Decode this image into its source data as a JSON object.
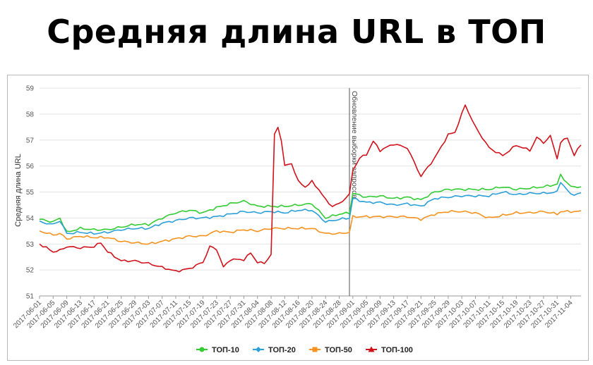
{
  "title": "Средняя длина URL в ТОП",
  "chart_data": {
    "type": "line",
    "title": "Средняя длина URL в ТОП",
    "ylabel": "Средняя длина URL",
    "xlabel": "",
    "ylim": [
      51,
      59
    ],
    "yticks": [
      51,
      52,
      53,
      54,
      55,
      56,
      57,
      58,
      59
    ],
    "x_start": "2017-06-01",
    "x_end": "2017-11-07",
    "x_tick_labels": [
      "2017-06-01",
      "2017-06-05",
      "2017-06-09",
      "2017-06-13",
      "2017-06-17",
      "2017-06-21",
      "2017-06-25",
      "2017-06-29",
      "2017-07-03",
      "2017-07-07",
      "2017-07-11",
      "2017-07-15",
      "2017-07-19",
      "2017-07-23",
      "2017-07-27",
      "2017-07-31",
      "2017-08-04",
      "2017-08-08",
      "2017-08-12",
      "2017-08-16",
      "2017-08-20",
      "2017-08-24",
      "2017-08-28",
      "2017-09-01",
      "2017-09-05",
      "2017-09-09",
      "2017-09-13",
      "2017-09-17",
      "2017-09-21",
      "2017-09-25",
      "2017-09-29",
      "2017-10-03",
      "2017-10-07",
      "2017-10-11",
      "2017-10-15",
      "2017-10-19",
      "2017-10-23",
      "2017-10-27",
      "2017-10-31",
      "2017-11-04"
    ],
    "grid": true,
    "legend_position": "bottom-center",
    "annotation": {
      "date": "2017-08-31",
      "text": "Обновление выборки запросов"
    },
    "series": [
      {
        "name": "ТОП-10",
        "color": "#33cc33",
        "marker": "circle",
        "anchors": [
          [
            "2017-06-01",
            53.95
          ],
          [
            "2017-06-05",
            53.85
          ],
          [
            "2017-06-07",
            54.0
          ],
          [
            "2017-06-09",
            53.45
          ],
          [
            "2017-06-13",
            53.6
          ],
          [
            "2017-06-17",
            53.55
          ],
          [
            "2017-06-21",
            53.55
          ],
          [
            "2017-06-25",
            53.65
          ],
          [
            "2017-06-29",
            53.75
          ],
          [
            "2017-07-03",
            53.75
          ],
          [
            "2017-07-07",
            54.0
          ],
          [
            "2017-07-11",
            54.2
          ],
          [
            "2017-07-15",
            54.3
          ],
          [
            "2017-07-19",
            54.2
          ],
          [
            "2017-07-23",
            54.4
          ],
          [
            "2017-07-27",
            54.55
          ],
          [
            "2017-07-31",
            54.65
          ],
          [
            "2017-08-04",
            54.45
          ],
          [
            "2017-08-08",
            54.45
          ],
          [
            "2017-08-12",
            54.45
          ],
          [
            "2017-08-16",
            54.5
          ],
          [
            "2017-08-20",
            54.55
          ],
          [
            "2017-08-24",
            54.0
          ],
          [
            "2017-08-28",
            54.15
          ],
          [
            "2017-08-31",
            54.2
          ],
          [
            "2017-09-01",
            54.95
          ],
          [
            "2017-09-05",
            54.8
          ],
          [
            "2017-09-09",
            54.85
          ],
          [
            "2017-09-13",
            54.75
          ],
          [
            "2017-09-17",
            54.8
          ],
          [
            "2017-09-21",
            54.7
          ],
          [
            "2017-09-25",
            55.0
          ],
          [
            "2017-09-29",
            55.1
          ],
          [
            "2017-10-03",
            55.1
          ],
          [
            "2017-10-07",
            55.1
          ],
          [
            "2017-10-11",
            55.1
          ],
          [
            "2017-10-15",
            55.2
          ],
          [
            "2017-10-19",
            55.1
          ],
          [
            "2017-10-23",
            55.15
          ],
          [
            "2017-10-27",
            55.2
          ],
          [
            "2017-10-31",
            55.3
          ],
          [
            "2017-11-01",
            55.65
          ],
          [
            "2017-11-04",
            55.2
          ],
          [
            "2017-11-07",
            55.2
          ]
        ]
      },
      {
        "name": "ТОП-20",
        "color": "#2a9fd8",
        "marker": "diamond",
        "anchors": [
          [
            "2017-06-01",
            53.85
          ],
          [
            "2017-06-05",
            53.75
          ],
          [
            "2017-06-07",
            53.9
          ],
          [
            "2017-06-09",
            53.4
          ],
          [
            "2017-06-13",
            53.45
          ],
          [
            "2017-06-17",
            53.4
          ],
          [
            "2017-06-21",
            53.45
          ],
          [
            "2017-06-25",
            53.55
          ],
          [
            "2017-06-29",
            53.6
          ],
          [
            "2017-07-03",
            53.6
          ],
          [
            "2017-07-07",
            53.8
          ],
          [
            "2017-07-11",
            53.9
          ],
          [
            "2017-07-15",
            54.0
          ],
          [
            "2017-07-19",
            54.0
          ],
          [
            "2017-07-23",
            54.05
          ],
          [
            "2017-07-27",
            54.15
          ],
          [
            "2017-07-31",
            54.25
          ],
          [
            "2017-08-04",
            54.2
          ],
          [
            "2017-08-08",
            54.25
          ],
          [
            "2017-08-12",
            54.2
          ],
          [
            "2017-08-16",
            54.3
          ],
          [
            "2017-08-20",
            54.3
          ],
          [
            "2017-08-24",
            53.85
          ],
          [
            "2017-08-28",
            53.95
          ],
          [
            "2017-08-31",
            54.0
          ],
          [
            "2017-09-01",
            54.75
          ],
          [
            "2017-09-05",
            54.6
          ],
          [
            "2017-09-09",
            54.6
          ],
          [
            "2017-09-13",
            54.5
          ],
          [
            "2017-09-17",
            54.55
          ],
          [
            "2017-09-21",
            54.45
          ],
          [
            "2017-09-25",
            54.75
          ],
          [
            "2017-09-29",
            54.8
          ],
          [
            "2017-10-03",
            54.85
          ],
          [
            "2017-10-07",
            54.85
          ],
          [
            "2017-10-11",
            54.85
          ],
          [
            "2017-10-15",
            55.0
          ],
          [
            "2017-10-19",
            54.9
          ],
          [
            "2017-10-23",
            54.95
          ],
          [
            "2017-10-27",
            54.95
          ],
          [
            "2017-10-31",
            55.0
          ],
          [
            "2017-11-01",
            55.4
          ],
          [
            "2017-11-04",
            54.9
          ],
          [
            "2017-11-07",
            54.95
          ]
        ]
      },
      {
        "name": "ТОП-50",
        "color": "#f5931e",
        "marker": "square",
        "anchors": [
          [
            "2017-06-01",
            53.5
          ],
          [
            "2017-06-05",
            53.35
          ],
          [
            "2017-06-07",
            53.4
          ],
          [
            "2017-06-09",
            53.2
          ],
          [
            "2017-06-13",
            53.3
          ],
          [
            "2017-06-17",
            53.25
          ],
          [
            "2017-06-21",
            53.25
          ],
          [
            "2017-06-25",
            53.1
          ],
          [
            "2017-06-29",
            53.05
          ],
          [
            "2017-07-03",
            53.0
          ],
          [
            "2017-07-07",
            53.1
          ],
          [
            "2017-07-11",
            53.2
          ],
          [
            "2017-07-15",
            53.3
          ],
          [
            "2017-07-19",
            53.3
          ],
          [
            "2017-07-23",
            53.5
          ],
          [
            "2017-07-27",
            53.45
          ],
          [
            "2017-07-31",
            53.55
          ],
          [
            "2017-08-04",
            53.5
          ],
          [
            "2017-08-08",
            53.6
          ],
          [
            "2017-08-12",
            53.6
          ],
          [
            "2017-08-16",
            53.6
          ],
          [
            "2017-08-20",
            53.6
          ],
          [
            "2017-08-24",
            53.4
          ],
          [
            "2017-08-28",
            53.4
          ],
          [
            "2017-08-31",
            53.45
          ],
          [
            "2017-09-01",
            54.05
          ],
          [
            "2017-09-05",
            54.05
          ],
          [
            "2017-09-09",
            54.05
          ],
          [
            "2017-09-13",
            54.05
          ],
          [
            "2017-09-17",
            54.05
          ],
          [
            "2017-09-21",
            53.95
          ],
          [
            "2017-09-25",
            54.15
          ],
          [
            "2017-09-29",
            54.25
          ],
          [
            "2017-10-03",
            54.25
          ],
          [
            "2017-10-07",
            54.2
          ],
          [
            "2017-10-11",
            54.0
          ],
          [
            "2017-10-15",
            54.1
          ],
          [
            "2017-10-19",
            54.2
          ],
          [
            "2017-10-23",
            54.2
          ],
          [
            "2017-10-27",
            54.25
          ],
          [
            "2017-10-31",
            54.15
          ],
          [
            "2017-11-01",
            54.25
          ],
          [
            "2017-11-04",
            54.25
          ],
          [
            "2017-11-07",
            54.25
          ]
        ]
      },
      {
        "name": "ТОП-100",
        "color": "#d0121b",
        "marker": "triangle",
        "anchors": [
          [
            "2017-06-01",
            53.0
          ],
          [
            "2017-06-05",
            52.7
          ],
          [
            "2017-06-07",
            52.75
          ],
          [
            "2017-06-09",
            52.9
          ],
          [
            "2017-06-13",
            52.85
          ],
          [
            "2017-06-17",
            52.9
          ],
          [
            "2017-06-19",
            53.05
          ],
          [
            "2017-06-21",
            52.7
          ],
          [
            "2017-06-25",
            52.35
          ],
          [
            "2017-06-29",
            52.35
          ],
          [
            "2017-07-03",
            52.25
          ],
          [
            "2017-07-07",
            52.1
          ],
          [
            "2017-07-11",
            51.95
          ],
          [
            "2017-07-15",
            52.05
          ],
          [
            "2017-07-19",
            52.3
          ],
          [
            "2017-07-21",
            52.9
          ],
          [
            "2017-07-23",
            52.8
          ],
          [
            "2017-07-25",
            52.1
          ],
          [
            "2017-07-27",
            52.4
          ],
          [
            "2017-07-31",
            52.4
          ],
          [
            "2017-08-02",
            52.65
          ],
          [
            "2017-08-04",
            52.3
          ],
          [
            "2017-08-06",
            52.25
          ],
          [
            "2017-08-08",
            52.6
          ],
          [
            "2017-08-09",
            57.2
          ],
          [
            "2017-08-10",
            57.5
          ],
          [
            "2017-08-11",
            57.0
          ],
          [
            "2017-08-12",
            56.0
          ],
          [
            "2017-08-14",
            56.1
          ],
          [
            "2017-08-16",
            55.4
          ],
          [
            "2017-08-18",
            55.2
          ],
          [
            "2017-08-20",
            55.4
          ],
          [
            "2017-08-22",
            55.1
          ],
          [
            "2017-08-24",
            54.7
          ],
          [
            "2017-08-26",
            54.45
          ],
          [
            "2017-08-28",
            54.55
          ],
          [
            "2017-08-31",
            54.9
          ],
          [
            "2017-09-01",
            55.85
          ],
          [
            "2017-09-03",
            56.3
          ],
          [
            "2017-09-05",
            56.45
          ],
          [
            "2017-09-07",
            56.95
          ],
          [
            "2017-09-09",
            56.6
          ],
          [
            "2017-09-13",
            56.85
          ],
          [
            "2017-09-17",
            56.7
          ],
          [
            "2017-09-21",
            55.6
          ],
          [
            "2017-09-25",
            56.3
          ],
          [
            "2017-09-29",
            57.2
          ],
          [
            "2017-10-01",
            57.3
          ],
          [
            "2017-10-03",
            58.0
          ],
          [
            "2017-10-04",
            58.35
          ],
          [
            "2017-10-07",
            57.5
          ],
          [
            "2017-10-11",
            56.7
          ],
          [
            "2017-10-15",
            56.4
          ],
          [
            "2017-10-19",
            56.8
          ],
          [
            "2017-10-23",
            56.6
          ],
          [
            "2017-10-25",
            57.1
          ],
          [
            "2017-10-27",
            56.9
          ],
          [
            "2017-10-29",
            57.15
          ],
          [
            "2017-10-31",
            56.3
          ],
          [
            "2017-11-01",
            56.9
          ],
          [
            "2017-11-03",
            57.1
          ],
          [
            "2017-11-05",
            56.4
          ],
          [
            "2017-11-07",
            56.85
          ]
        ]
      }
    ]
  }
}
